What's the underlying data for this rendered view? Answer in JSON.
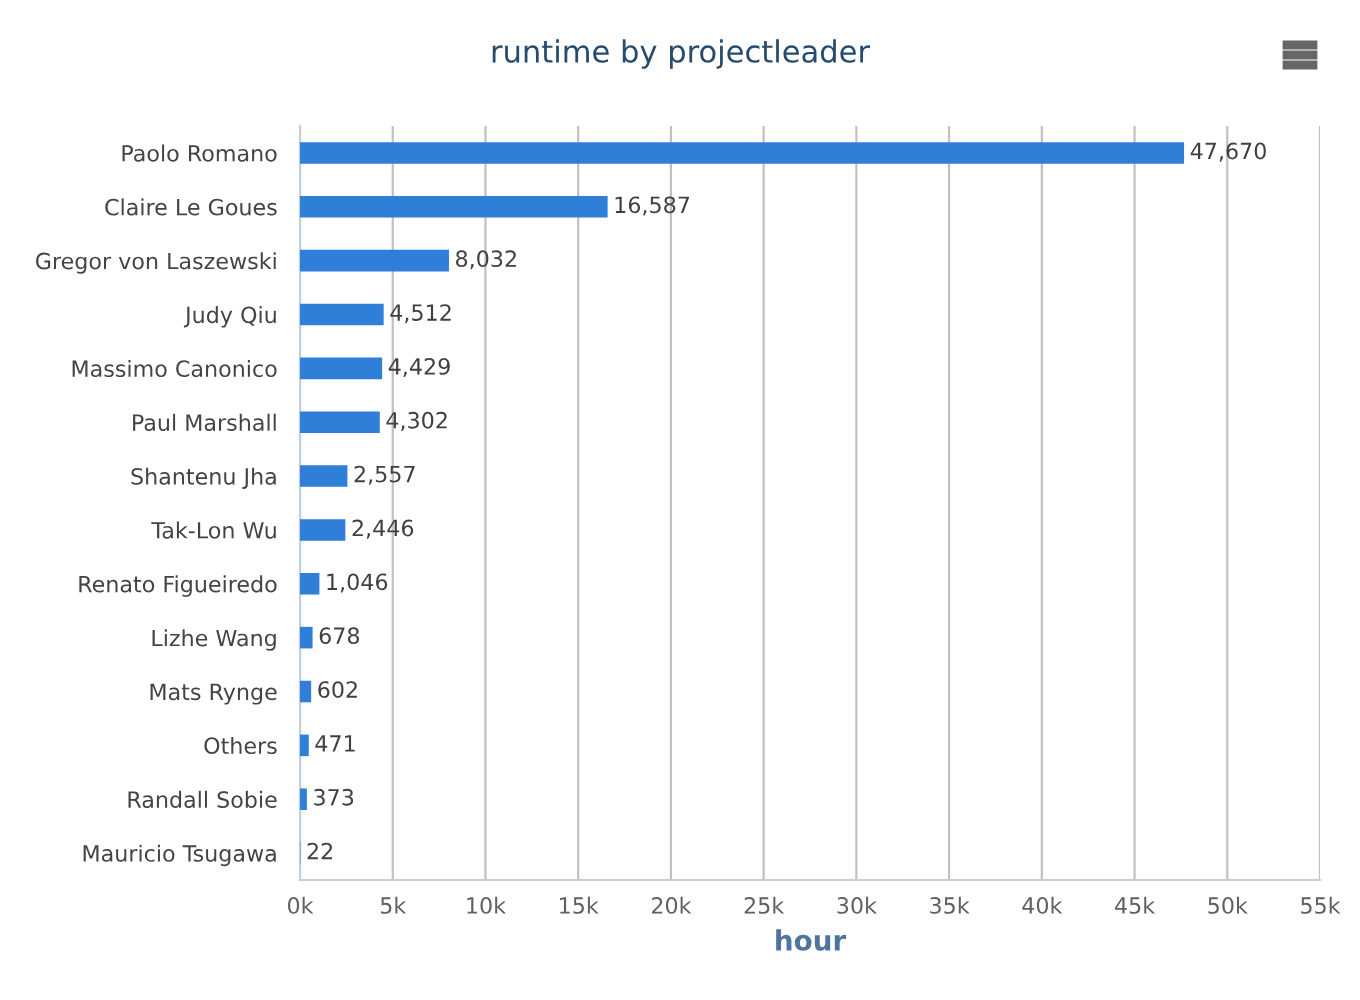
{
  "chart_data": {
    "type": "bar",
    "orientation": "horizontal",
    "title": "runtime by projectleader",
    "xlabel": "hour",
    "categories": [
      "Paolo Romano",
      "Claire Le Goues",
      "Gregor von Laszewski",
      "Judy Qiu",
      "Massimo Canonico",
      "Paul Marshall",
      "Shantenu Jha",
      "Tak-Lon Wu",
      "Renato Figueiredo",
      "Lizhe Wang",
      "Mats Rynge",
      "Others",
      "Randall Sobie",
      "Mauricio Tsugawa"
    ],
    "values": [
      47670,
      16587,
      8032,
      4512,
      4429,
      4302,
      2557,
      2446,
      1046,
      678,
      602,
      471,
      373,
      22
    ],
    "value_labels": [
      "47,670",
      "16,587",
      "8,032",
      "4,512",
      "4,429",
      "4,302",
      "2,557",
      "2,446",
      "1,046",
      "678",
      "602",
      "471",
      "373",
      "22"
    ],
    "color": "#2f7ed8",
    "xlim": [
      0,
      55000
    ],
    "xticks": [
      {
        "value": 0,
        "label": "0k"
      },
      {
        "value": 5000,
        "label": "5k"
      },
      {
        "value": 10000,
        "label": "10k"
      },
      {
        "value": 15000,
        "label": "15k"
      },
      {
        "value": 20000,
        "label": "20k"
      },
      {
        "value": 25000,
        "label": "25k"
      },
      {
        "value": 30000,
        "label": "30k"
      },
      {
        "value": 35000,
        "label": "35k"
      },
      {
        "value": 40000,
        "label": "40k"
      },
      {
        "value": 45000,
        "label": "45k"
      },
      {
        "value": 50000,
        "label": "50k"
      },
      {
        "value": 55000,
        "label": "55k"
      }
    ],
    "grid": "x",
    "legend": false
  }
}
